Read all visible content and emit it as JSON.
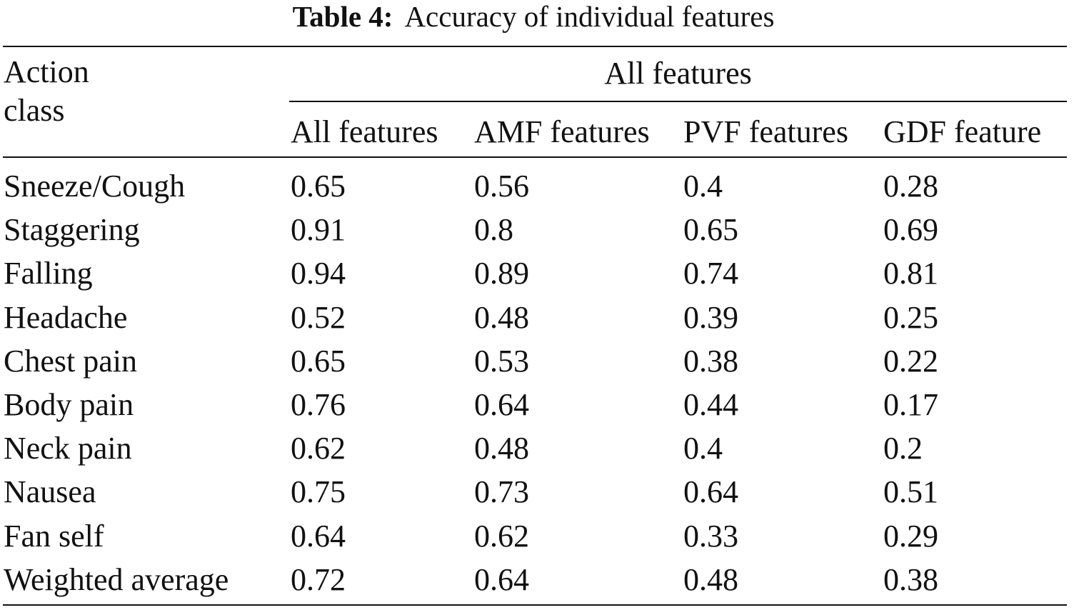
{
  "caption": {
    "label": "Table 4:",
    "text": "Accuracy of individual features"
  },
  "table": {
    "stub_header_line1": "Action",
    "stub_header_line2": "class",
    "group_header": "All features",
    "columns": [
      "All features",
      "AMF features",
      "PVF features",
      "GDF feature"
    ],
    "rows": [
      {
        "label": "Sneeze/Cough",
        "values": [
          "0.65",
          "0.56",
          "0.4",
          "0.28"
        ]
      },
      {
        "label": "Staggering",
        "values": [
          "0.91",
          "0.8",
          "0.65",
          "0.69"
        ]
      },
      {
        "label": "Falling",
        "values": [
          "0.94",
          "0.89",
          "0.74",
          "0.81"
        ]
      },
      {
        "label": "Headache",
        "values": [
          "0.52",
          "0.48",
          "0.39",
          "0.25"
        ]
      },
      {
        "label": "Chest pain",
        "values": [
          "0.65",
          "0.53",
          "0.38",
          "0.22"
        ]
      },
      {
        "label": "Body pain",
        "values": [
          "0.76",
          "0.64",
          "0.44",
          "0.17"
        ]
      },
      {
        "label": "Neck pain",
        "values": [
          "0.62",
          "0.48",
          "0.4",
          "0.2"
        ]
      },
      {
        "label": "Nausea",
        "values": [
          "0.75",
          "0.73",
          "0.64",
          "0.51"
        ]
      },
      {
        "label": "Fan self",
        "values": [
          "0.64",
          "0.62",
          "0.33",
          "0.29"
        ]
      },
      {
        "label": "Weighted average",
        "values": [
          "0.72",
          "0.64",
          "0.48",
          "0.38"
        ]
      }
    ]
  }
}
